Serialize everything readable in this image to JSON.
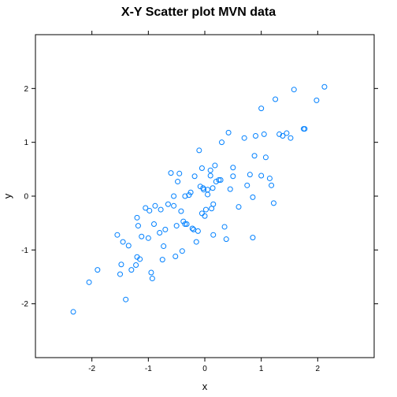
{
  "chart_data": {
    "type": "scatter",
    "title": "X-Y Scatter plot MVN data",
    "xlabel": "x",
    "ylabel": "y",
    "xlim": [
      -3.0,
      3.0
    ],
    "ylim": [
      -3.0,
      3.0
    ],
    "xticks": [
      -2,
      -1,
      0,
      1,
      2
    ],
    "yticks": [
      -2,
      -1,
      0,
      1,
      2
    ],
    "grid": false,
    "point_color": "#0080ff",
    "points": [
      [
        -2.33,
        -2.15
      ],
      [
        -2.05,
        -1.6
      ],
      [
        -1.9,
        -1.37
      ],
      [
        -1.55,
        -0.72
      ],
      [
        -1.5,
        -1.45
      ],
      [
        -1.48,
        -1.27
      ],
      [
        -1.45,
        -0.85
      ],
      [
        -1.4,
        -1.92
      ],
      [
        -1.35,
        -0.92
      ],
      [
        -1.3,
        -1.37
      ],
      [
        -1.22,
        -1.28
      ],
      [
        -1.2,
        -0.4
      ],
      [
        -1.2,
        -1.13
      ],
      [
        -1.18,
        -0.55
      ],
      [
        -1.15,
        -1.17
      ],
      [
        -1.12,
        -0.75
      ],
      [
        -1.05,
        -0.22
      ],
      [
        -1.0,
        -0.78
      ],
      [
        -0.98,
        -0.27
      ],
      [
        -0.95,
        -1.42
      ],
      [
        -0.93,
        -1.53
      ],
      [
        -0.9,
        -0.52
      ],
      [
        -0.88,
        -0.18
      ],
      [
        -0.8,
        -0.68
      ],
      [
        -0.78,
        -0.25
      ],
      [
        -0.75,
        -1.18
      ],
      [
        -0.73,
        -0.93
      ],
      [
        -0.7,
        -0.62
      ],
      [
        -0.65,
        -0.15
      ],
      [
        -0.6,
        0.43
      ],
      [
        -0.55,
        -0.18
      ],
      [
        -0.55,
        0.0
      ],
      [
        -0.52,
        -1.12
      ],
      [
        -0.5,
        -0.55
      ],
      [
        -0.48,
        0.27
      ],
      [
        -0.45,
        0.42
      ],
      [
        -0.42,
        -0.28
      ],
      [
        -0.4,
        -1.02
      ],
      [
        -0.38,
        -0.47
      ],
      [
        -0.35,
        0.0
      ],
      [
        -0.35,
        -0.52
      ],
      [
        -0.32,
        -0.52
      ],
      [
        -0.28,
        0.02
      ],
      [
        -0.25,
        0.07
      ],
      [
        -0.22,
        -0.6
      ],
      [
        -0.2,
        -0.62
      ],
      [
        -0.18,
        0.37
      ],
      [
        -0.15,
        -0.85
      ],
      [
        -0.12,
        -0.65
      ],
      [
        -0.1,
        0.85
      ],
      [
        -0.08,
        0.18
      ],
      [
        -0.05,
        0.52
      ],
      [
        -0.05,
        -0.32
      ],
      [
        -0.03,
        0.15
      ],
      [
        -0.02,
        0.12
      ],
      [
        0.0,
        -0.37
      ],
      [
        0.02,
        -0.25
      ],
      [
        0.05,
        0.03
      ],
      [
        0.05,
        0.12
      ],
      [
        0.1,
        0.38
      ],
      [
        0.1,
        0.48
      ],
      [
        0.12,
        -0.23
      ],
      [
        0.14,
        0.15
      ],
      [
        0.15,
        -0.15
      ],
      [
        0.15,
        -0.72
      ],
      [
        0.18,
        0.57
      ],
      [
        0.2,
        0.27
      ],
      [
        0.25,
        0.3
      ],
      [
        0.28,
        0.3
      ],
      [
        0.3,
        1.0
      ],
      [
        0.35,
        -0.57
      ],
      [
        0.38,
        -0.8
      ],
      [
        0.42,
        1.18
      ],
      [
        0.45,
        0.13
      ],
      [
        0.5,
        0.37
      ],
      [
        0.5,
        0.53
      ],
      [
        0.6,
        -0.2
      ],
      [
        0.7,
        1.08
      ],
      [
        0.75,
        0.2
      ],
      [
        0.8,
        0.4
      ],
      [
        0.85,
        -0.77
      ],
      [
        0.85,
        -0.02
      ],
      [
        0.88,
        0.75
      ],
      [
        0.9,
        1.12
      ],
      [
        1.0,
        1.63
      ],
      [
        1.0,
        0.38
      ],
      [
        1.05,
        1.15
      ],
      [
        1.08,
        0.72
      ],
      [
        1.15,
        0.33
      ],
      [
        1.18,
        0.2
      ],
      [
        1.22,
        -0.13
      ],
      [
        1.25,
        1.8
      ],
      [
        1.32,
        1.15
      ],
      [
        1.38,
        1.12
      ],
      [
        1.45,
        1.17
      ],
      [
        1.52,
        1.08
      ],
      [
        1.58,
        1.98
      ],
      [
        1.75,
        1.25
      ],
      [
        1.77,
        1.25
      ],
      [
        1.98,
        1.78
      ],
      [
        2.12,
        2.03
      ]
    ]
  }
}
